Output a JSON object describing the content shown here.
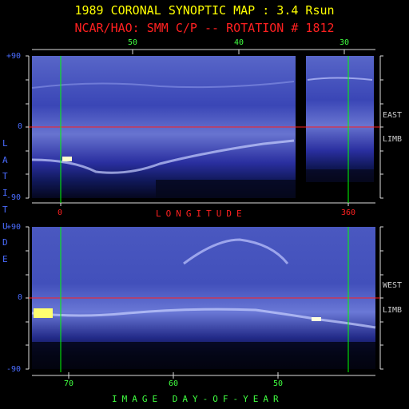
{
  "header": {
    "title": "1989 CORONAL SYNOPTIC MAP : 3.4 Rsun",
    "subtitle": "NCAR/HAO: SMM C/P -- ROTATION # 1812"
  },
  "top_panel": {
    "top_ticks": [
      "50",
      "40",
      "30"
    ],
    "bottom_ticks": [
      "0",
      "360"
    ],
    "bottom_axis_label": "LONGITUDE",
    "y_ticks": [
      "+90",
      "0",
      "-90"
    ],
    "side_label_top": "EAST",
    "side_label_bottom": "LIMB"
  },
  "bottom_panel": {
    "y_ticks": [
      "+90",
      "0",
      "-90"
    ],
    "bottom_ticks": [
      "70",
      "60",
      "50"
    ],
    "bottom_axis_label": "IMAGE DAY-OF-YEAR",
    "side_label_top": "WEST",
    "side_label_bottom": "LIMB"
  },
  "vertical_axis_label": "LATITUDE",
  "colors": {
    "title": "#ffff00",
    "subtitle": "#ff2020",
    "tick_text": "#40ff40",
    "lat_label": "#4a6cff",
    "longitude_text": "#ff2020",
    "day_text": "#40ff40",
    "limb_text": "#cccccc",
    "marker_line_green": "#00ff00",
    "equator_line_red": "#ff2020"
  }
}
